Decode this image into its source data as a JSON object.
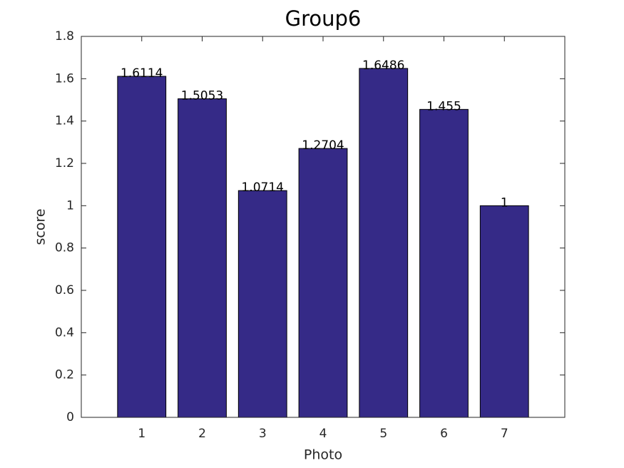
{
  "chart_data": {
    "type": "bar",
    "title": "Group6",
    "x_label": "Photo",
    "y_label": "score",
    "x": [
      1,
      2,
      3,
      4,
      5,
      6,
      7
    ],
    "values": [
      1.6114,
      1.5053,
      1.0714,
      1.2704,
      1.6486,
      1.455,
      1
    ],
    "color": "#352a87",
    "xlim": [
      0,
      8
    ],
    "xticks": [
      1,
      2,
      3,
      4,
      5,
      6,
      7
    ],
    "ylim": [
      0,
      1.8
    ],
    "yticks": [
      0,
      0.2,
      0.4,
      0.6,
      0.8,
      1,
      1.2,
      1.4,
      1.6,
      1.8
    ]
  }
}
